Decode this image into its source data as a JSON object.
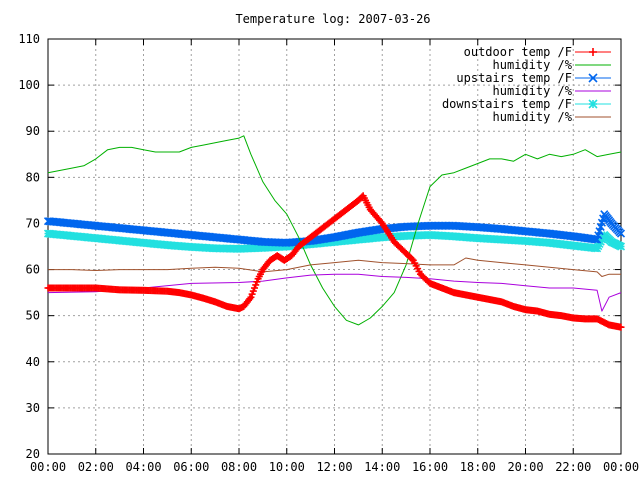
{
  "chart_data": {
    "type": "line",
    "title": "Temperature log: 2007-03-26",
    "xlabel": "",
    "ylabel": "",
    "x_ticks": [
      "00:00",
      "02:00",
      "04:00",
      "06:00",
      "08:00",
      "10:00",
      "12:00",
      "14:00",
      "16:00",
      "18:00",
      "20:00",
      "22:00",
      "00:00"
    ],
    "xlim": [
      0,
      24
    ],
    "ylim": [
      20,
      110
    ],
    "y_ticks": [
      20,
      30,
      40,
      50,
      60,
      70,
      80,
      90,
      100,
      110
    ],
    "grid": true,
    "legend_position": "top-right",
    "series": [
      {
        "name": "outdoor temp /F",
        "color": "#ff0000",
        "marker": "plus",
        "x": [
          0,
          1,
          2,
          3,
          4,
          5,
          5.5,
          6,
          6.5,
          7,
          7.5,
          8,
          8.2,
          8.5,
          8.8,
          9,
          9.3,
          9.6,
          9.9,
          10.2,
          10.5,
          11,
          11.5,
          12,
          12.5,
          13,
          13.2,
          13.5,
          14,
          14.5,
          15,
          15.3,
          15.6,
          16,
          16.5,
          17,
          17.5,
          18,
          18.5,
          19,
          19.5,
          20,
          20.5,
          21,
          21.5,
          22,
          22.5,
          23,
          23.5,
          24
        ],
        "y": [
          56,
          56,
          56,
          55.6,
          55.5,
          55.3,
          55,
          54.5,
          53.8,
          53,
          52,
          51.5,
          52,
          54,
          58,
          60,
          62,
          63,
          62,
          63,
          65,
          67,
          69,
          71,
          73,
          75,
          76,
          73,
          70,
          66,
          63.5,
          62,
          59,
          57,
          56,
          55,
          54.5,
          54,
          53.5,
          53,
          52,
          51.3,
          51,
          50.3,
          50,
          49.5,
          49.3,
          49.3,
          48,
          47.5
        ]
      },
      {
        "name": "humidity /%",
        "color": "#00b000",
        "marker": "none",
        "x": [
          0,
          1,
          1.5,
          2,
          2.5,
          3,
          3.5,
          4,
          4.5,
          5,
          5.5,
          6,
          6.5,
          7,
          7.5,
          8,
          8.2,
          8.5,
          9,
          9.5,
          10,
          10.5,
          11,
          11.5,
          12,
          12.5,
          13,
          13.5,
          14,
          14.5,
          15,
          15.5,
          16,
          16.5,
          17,
          17.5,
          18,
          18.5,
          19,
          19.5,
          20,
          20.5,
          21,
          21.5,
          22,
          22.5,
          23,
          23.5,
          24
        ],
        "y": [
          81,
          82,
          82.5,
          84,
          86,
          86.5,
          86.5,
          86,
          85.5,
          85.5,
          85.5,
          86.5,
          87,
          87.5,
          88,
          88.5,
          89,
          85,
          79,
          75,
          72,
          67,
          61,
          56,
          52,
          49,
          48,
          49.5,
          52,
          55,
          61,
          70,
          78,
          80.5,
          81,
          82,
          83,
          84,
          84,
          83.5,
          85,
          84,
          85,
          84.5,
          85,
          86,
          84.5,
          85,
          85.5
        ]
      },
      {
        "name": "upstairs temp /F",
        "color": "#0066ee",
        "marker": "x",
        "x": [
          0,
          1,
          2,
          3,
          4,
          5,
          6,
          7,
          8,
          9,
          10,
          11,
          12,
          13,
          14,
          15,
          16,
          17,
          18,
          19,
          20,
          21,
          22,
          23,
          23.3,
          23.6,
          24
        ],
        "y": [
          70.5,
          70,
          69.5,
          69,
          68.5,
          68,
          67.5,
          67,
          66.5,
          66,
          65.8,
          66.2,
          67,
          68,
          68.8,
          69.3,
          69.5,
          69.5,
          69.2,
          68.8,
          68.3,
          67.8,
          67.2,
          66.5,
          72,
          70,
          67.8
        ]
      },
      {
        "name": "humidity /%",
        "color": "#aa00dd",
        "marker": "none",
        "x": [
          0,
          2,
          4,
          6,
          8,
          9,
          10,
          11,
          12,
          13,
          14,
          15,
          16,
          17,
          18,
          19,
          20,
          21,
          22,
          23,
          23.2,
          23.5,
          24
        ],
        "y": [
          55,
          55.2,
          56,
          57,
          57.2,
          57.5,
          58.2,
          58.8,
          59,
          59,
          58.5,
          58.3,
          58,
          57.5,
          57.2,
          57,
          56.5,
          56,
          56,
          55.5,
          51,
          54,
          55
        ]
      },
      {
        "name": "downstairs temp /F",
        "color": "#22e0e0",
        "marker": "star",
        "x": [
          0,
          1,
          2,
          3,
          4,
          5,
          6,
          7,
          8,
          9,
          10,
          11,
          12,
          13,
          14,
          15,
          16,
          17,
          18,
          19,
          20,
          21,
          22,
          23,
          23.3,
          23.6,
          24
        ],
        "y": [
          67.8,
          67.3,
          66.8,
          66.3,
          65.8,
          65.3,
          64.9,
          64.6,
          64.5,
          64.7,
          65,
          65.5,
          66,
          66.5,
          67,
          67.3,
          67.5,
          67.2,
          66.8,
          66.5,
          66.2,
          65.8,
          65.2,
          64.6,
          67.5,
          66,
          65
        ]
      },
      {
        "name": "humidity /%",
        "color": "#a0522d",
        "marker": "none",
        "x": [
          0,
          1,
          2,
          3,
          4,
          5,
          6,
          7,
          8,
          9,
          10,
          11,
          12,
          13,
          14,
          15,
          16,
          17,
          17.5,
          18,
          19,
          20,
          21,
          22,
          23,
          23.2,
          23.5,
          24
        ],
        "y": [
          60,
          60,
          59.8,
          60,
          60,
          60,
          60.3,
          60.5,
          60.3,
          59.5,
          60,
          61,
          61.5,
          62,
          61.5,
          61.3,
          61,
          61,
          62.5,
          62,
          61.5,
          61,
          60.5,
          60,
          59.5,
          58.5,
          59,
          59
        ]
      }
    ]
  }
}
